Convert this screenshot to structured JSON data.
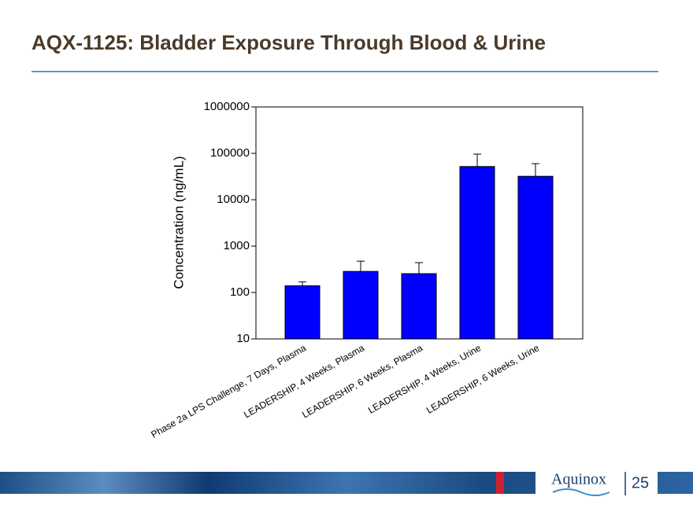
{
  "title": "AQX-1125:  Bladder Exposure Through Blood & Urine",
  "logo": "Aquinox",
  "page_number": "25",
  "chart_data": {
    "type": "bar",
    "y_label": "Concentration (ng/mL)",
    "categories": [
      "Phase 2a LPS Challenge, 7 Days, Plasma",
      "LEADERSHIP, 4 Weeks, Plasma",
      "LEADERSHIP, 6 Weeks, Plasma",
      "LEADERSHIP, 4 Weeks, Urine",
      "LEADERSHIP, 6 Weeks, Urine"
    ],
    "values": [
      140,
      285,
      255,
      52000,
      32000
    ],
    "errors": [
      30,
      190,
      185,
      44000,
      28000
    ],
    "color": "#0000ff",
    "ylim": [
      10,
      1000000
    ],
    "yticks": [
      10,
      100,
      1000,
      10000,
      100000,
      1000000
    ],
    "log_scale": true
  }
}
